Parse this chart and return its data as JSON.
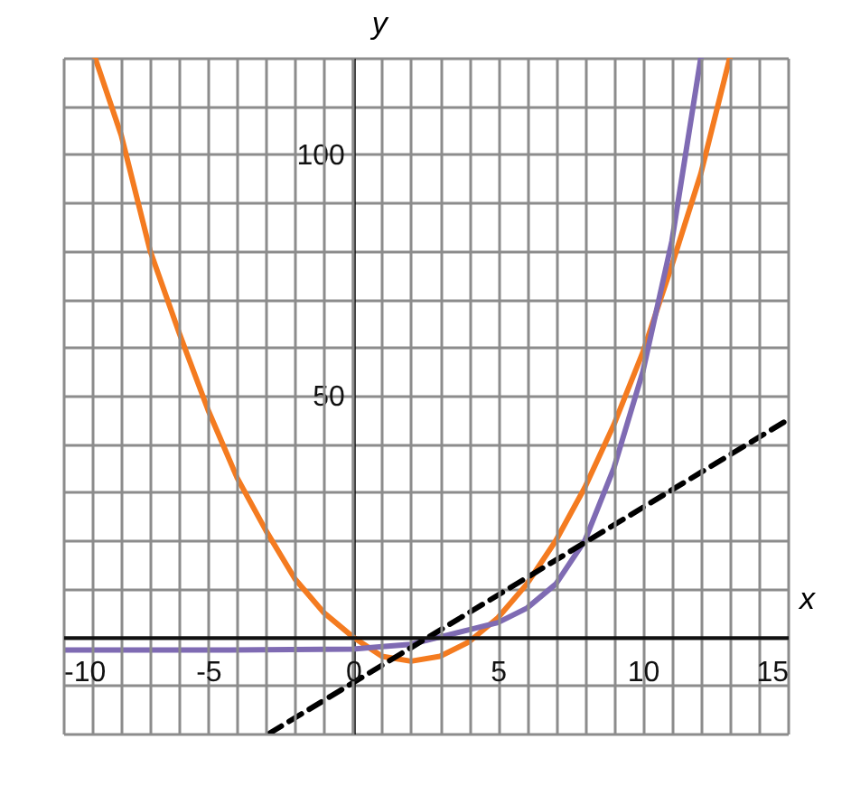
{
  "chart_data": {
    "type": "line",
    "xlabel": "x",
    "ylabel": "y",
    "xlim": [
      -10,
      15
    ],
    "ylim": [
      -20,
      120
    ],
    "xticks": [
      -10,
      {
        "value": -9,
        "label": null
      },
      {
        "value": -8,
        "label": null
      },
      {
        "value": -7,
        "label": null
      },
      {
        "value": -6,
        "label": null
      },
      -5,
      {
        "value": -4,
        "label": null
      },
      {
        "value": -3,
        "label": null
      },
      {
        "value": -2,
        "label": null
      },
      {
        "value": -1,
        "label": null
      },
      0,
      {
        "value": 1,
        "label": null
      },
      {
        "value": 2,
        "label": null
      },
      {
        "value": 3,
        "label": null
      },
      {
        "value": 4,
        "label": null
      },
      5,
      {
        "value": 6,
        "label": null
      },
      {
        "value": 7,
        "label": null
      },
      {
        "value": 8,
        "label": null
      },
      {
        "value": 9,
        "label": null
      },
      10,
      {
        "value": 11,
        "label": null
      },
      {
        "value": 12,
        "label": null
      },
      {
        "value": 13,
        "label": null
      },
      {
        "value": 14,
        "label": null
      },
      15
    ],
    "yticks": [
      {
        "value": -20,
        "label": null
      },
      {
        "value": -10,
        "label": null
      },
      {
        "value": 0,
        "label": null
      },
      {
        "value": 10,
        "label": null
      },
      {
        "value": 20,
        "label": null
      },
      {
        "value": 30,
        "label": null
      },
      {
        "value": 40,
        "label": null
      },
      50,
      {
        "value": 60,
        "label": null
      },
      {
        "value": 70,
        "label": null
      },
      {
        "value": 80,
        "label": null
      },
      {
        "value": 90,
        "label": null
      },
      100,
      {
        "value": 110,
        "label": null
      },
      {
        "value": 120,
        "label": null
      }
    ],
    "grid": true,
    "marker": "none",
    "series": [
      {
        "color": "#f47b20",
        "x": [
          -8.9,
          -8,
          -7,
          -6,
          -5,
          -4,
          -3,
          -2,
          -1,
          0,
          1,
          2,
          3,
          4,
          5,
          6,
          7,
          8,
          9,
          10,
          11,
          12,
          13
        ],
        "values": [
          120,
          104,
          80,
          63,
          47,
          33,
          22,
          12,
          5,
          0,
          -4,
          -5,
          -4,
          -1,
          4,
          11,
          20,
          31,
          44,
          59,
          77,
          96,
          120
        ]
      },
      {
        "color": "#7f6bb3",
        "x": [
          -10,
          -5,
          0,
          1,
          2,
          3,
          4,
          5,
          6,
          7,
          8,
          9,
          10,
          11,
          12
        ],
        "values": [
          -2.7,
          -2.7,
          -2.5,
          -2,
          -1.5,
          0,
          1.5,
          3,
          6,
          11,
          20,
          35,
          55,
          82,
          120
        ]
      },
      {
        "color": "#000000",
        "line_style": "dashed",
        "x": [
          -2.9,
          15
        ],
        "values": [
          -20,
          45
        ]
      }
    ]
  }
}
